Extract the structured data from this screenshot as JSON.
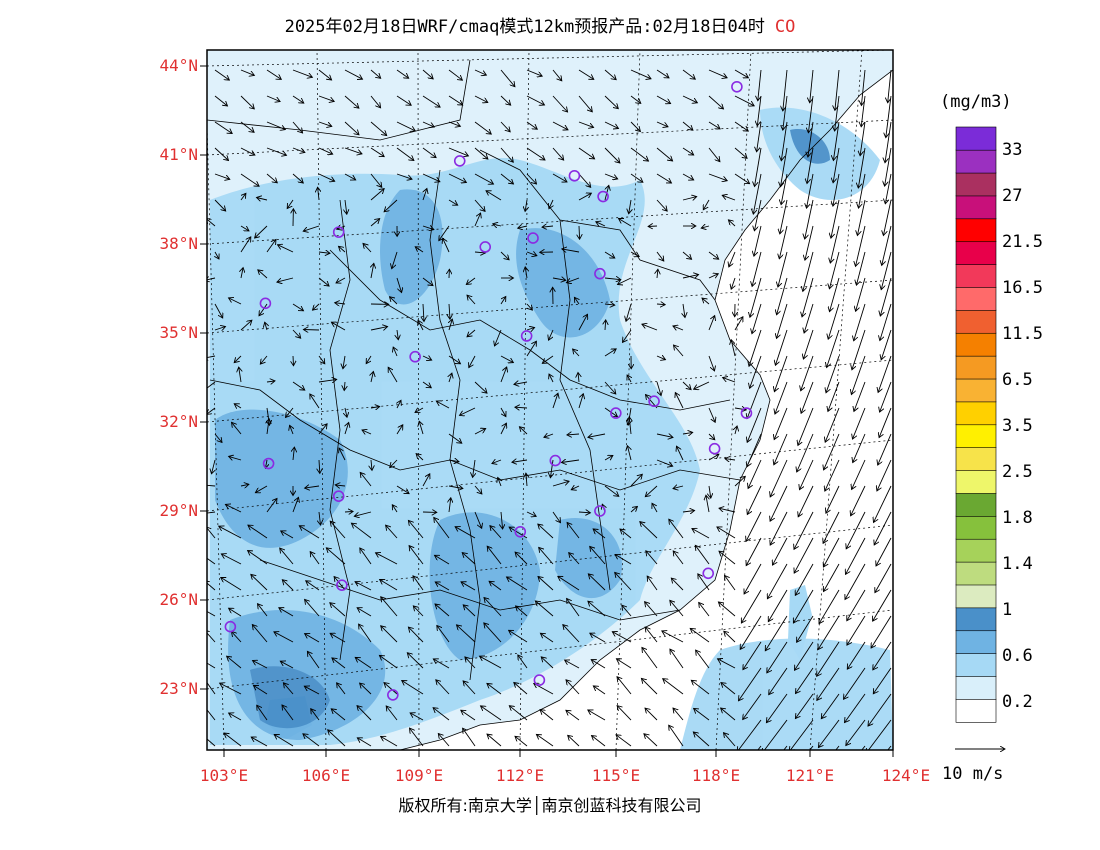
{
  "title": {
    "text": "2025年02月18日WRF/cmaq模式12km预报产品:02月18日04时",
    "species": "CO"
  },
  "map": {
    "lat_labels": [
      "44°N",
      "41°N",
      "38°N",
      "35°N",
      "32°N",
      "29°N",
      "26°N",
      "23°N"
    ],
    "lon_labels": [
      "103°E",
      "106°E",
      "109°E",
      "112°E",
      "115°E",
      "118°E",
      "121°E",
      "124°E"
    ],
    "lat_values": [
      44,
      41,
      38,
      35,
      32,
      29,
      26,
      23
    ],
    "lon_values": [
      103,
      106,
      109,
      112,
      115,
      118,
      121,
      124
    ],
    "extent": {
      "lon_min": 103,
      "lon_max": 124,
      "lat_min": 21,
      "lat_max": 44.5
    },
    "land_color": "#dff1fb",
    "sea_color": "#ffffff"
  },
  "colorbar": {
    "unit": "(mg/m3)",
    "colors": [
      "#ffffff",
      "#d9effa",
      "#a6d9f5",
      "#6fb3e3",
      "#4a90c9",
      "#dcebc0",
      "#bedc7f",
      "#a6d25a",
      "#86c13c",
      "#6aa832",
      "#eef66a",
      "#f7e34a",
      "#fff000",
      "#ffd000",
      "#f9b233",
      "#f59a22",
      "#f58000",
      "#f06030",
      "#ff6a6a",
      "#f2395a",
      "#e8004a",
      "#ff0000",
      "#c8107a",
      "#aa3060",
      "#9b30c0",
      "#7b2cd8"
    ],
    "labels": [
      "0.2",
      "0.6",
      "1",
      "1.4",
      "1.8",
      "2.5",
      "3.5",
      "6.5",
      "11.5",
      "16.5",
      "21.5",
      "27",
      "33"
    ]
  },
  "stations": [
    {
      "lon": 119.1,
      "lat": 43.3
    },
    {
      "lon": 110.4,
      "lat": 40.8
    },
    {
      "lon": 114.0,
      "lat": 40.3
    },
    {
      "lon": 114.9,
      "lat": 39.6
    },
    {
      "lon": 106.6,
      "lat": 38.4
    },
    {
      "lon": 111.2,
      "lat": 37.9
    },
    {
      "lon": 112.7,
      "lat": 38.2
    },
    {
      "lon": 114.8,
      "lat": 37.0
    },
    {
      "lon": 104.3,
      "lat": 36.0
    },
    {
      "lon": 112.5,
      "lat": 34.9
    },
    {
      "lon": 109.0,
      "lat": 34.2
    },
    {
      "lon": 116.5,
      "lat": 32.7
    },
    {
      "lon": 115.3,
      "lat": 32.3
    },
    {
      "lon": 119.4,
      "lat": 32.3
    },
    {
      "lon": 118.4,
      "lat": 31.1
    },
    {
      "lon": 104.4,
      "lat": 30.6
    },
    {
      "lon": 113.4,
      "lat": 30.7
    },
    {
      "lon": 106.6,
      "lat": 29.5
    },
    {
      "lon": 114.8,
      "lat": 29.0
    },
    {
      "lon": 112.3,
      "lat": 28.3
    },
    {
      "lon": 106.7,
      "lat": 26.5
    },
    {
      "lon": 118.2,
      "lat": 26.9
    },
    {
      "lon": 103.2,
      "lat": 25.1
    },
    {
      "lon": 108.3,
      "lat": 22.8
    },
    {
      "lon": 112.9,
      "lat": 23.3
    }
  ],
  "wind_reference": {
    "label": "10 m/s"
  },
  "copyright": "版权所有:南京大学│南京创蓝科技有限公司"
}
